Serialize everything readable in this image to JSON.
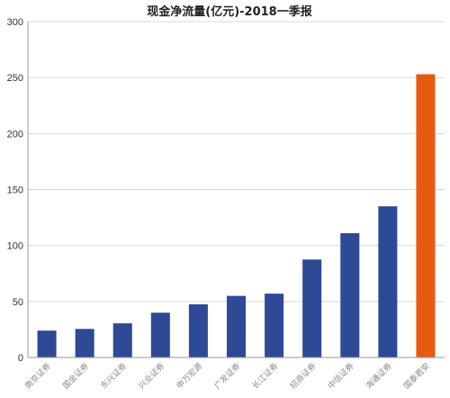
{
  "chart_data": {
    "type": "bar",
    "title": "现金净流量(亿元)-2018一季报",
    "xlabel": "",
    "ylabel": "",
    "categories": [
      "南京证券",
      "国金证券",
      "东兴证券",
      "兴业证券",
      "申万宏源",
      "广发证券",
      "长江证券",
      "招商证券",
      "中信证券",
      "海通证券",
      "国泰君安"
    ],
    "values": [
      24,
      25.5,
      30.5,
      40,
      47.5,
      55,
      57,
      87.5,
      111,
      135,
      253
    ],
    "ylim": [
      0,
      300
    ],
    "yticks": [
      0,
      50,
      100,
      150,
      200,
      250,
      300
    ],
    "grid": true,
    "legend": "none",
    "colors": {
      "default_bar": "#2e4a96",
      "highlight_bar": "#e85a0f",
      "highlight_category": "国泰君安"
    }
  }
}
